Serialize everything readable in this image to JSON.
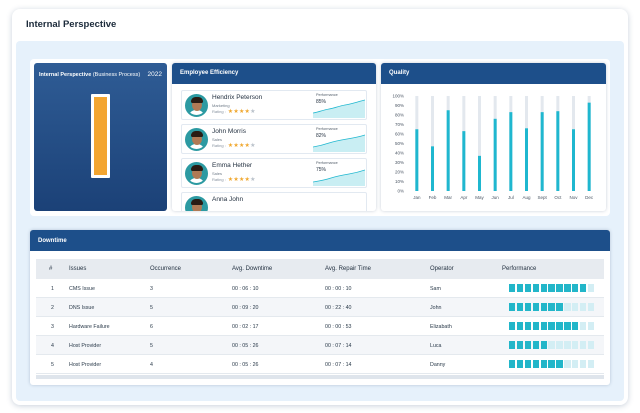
{
  "page": {
    "title": "Internal Perspective"
  },
  "perspective": {
    "title_bold": "Internal Perspective",
    "title_rest": "(Business Process)",
    "year": "2022",
    "bar_fill_fraction": 1.0,
    "bar_color": "#f3a530"
  },
  "employee_efficiency": {
    "title": "Employee Efficiency",
    "rating_label": "Rating :",
    "performance_label": "Performance",
    "employees": [
      {
        "name": "Hendrix Peterson",
        "department": "Marketing",
        "rating": 4,
        "performance": "85%"
      },
      {
        "name": "John Morris",
        "department": "Sales",
        "rating": 4,
        "performance": "82%"
      },
      {
        "name": "Emma Hether",
        "department": "Sales",
        "rating": 4,
        "performance": "75%"
      },
      {
        "name": "Anna John",
        "department": "",
        "rating": 0,
        "performance": ""
      }
    ]
  },
  "quality": {
    "title": "Quality",
    "accent": "#1fb7cf",
    "track": "#e3e8ee"
  },
  "chart_data": {
    "type": "bar",
    "title": "Quality",
    "categories": [
      "Jan",
      "Feb",
      "Mar",
      "Apr",
      "May",
      "Jun",
      "Jul",
      "Aug",
      "Sept",
      "Oct",
      "Nov",
      "Dec"
    ],
    "values": [
      65,
      47,
      85,
      63,
      37,
      76,
      83,
      66,
      83,
      84,
      65,
      93
    ],
    "track_values": [
      100,
      100,
      100,
      100,
      100,
      100,
      100,
      100,
      100,
      100,
      100,
      100
    ],
    "y_ticks": [
      "0%",
      "10%",
      "20%",
      "30%",
      "40%",
      "50%",
      "60%",
      "70%",
      "80%",
      "90%",
      "100%"
    ],
    "ylim": [
      0,
      100
    ],
    "xlabel": "",
    "ylabel": "",
    "grid": false
  },
  "downtime": {
    "title": "Downtime",
    "columns": [
      "#",
      "Issues",
      "Occurrence",
      "Avg. Downtime",
      "Avg. Repair Time",
      "Operator",
      "Performance"
    ],
    "rows": [
      {
        "num": "1",
        "issue": "CMS Issue",
        "occurrence": "3",
        "downtime": "00 : 06 : 10",
        "repair": "00 : 00 : 10",
        "operator": "Sam",
        "performance_blocks": 10
      },
      {
        "num": "2",
        "issue": "DNS Issue",
        "occurrence": "5",
        "downtime": "00 : 09 : 20",
        "repair": "00 : 22 : 40",
        "operator": "John",
        "performance_blocks": 7
      },
      {
        "num": "3",
        "issue": "Hardware Failure",
        "occurrence": "6",
        "downtime": "00 : 02 : 17",
        "repair": "00 : 00 : 53",
        "operator": "Elizabath",
        "performance_blocks": 9
      },
      {
        "num": "4",
        "issue": "Host Provider",
        "occurrence": "5",
        "downtime": "00 : 05 : 26",
        "repair": "00 : 07 : 14",
        "operator": "Luca",
        "performance_blocks": 5
      },
      {
        "num": "5",
        "issue": "Host Provider",
        "occurrence": "4",
        "downtime": "00 : 05 : 26",
        "repair": "00 : 07 : 14",
        "operator": "Danny",
        "performance_blocks": 7
      }
    ],
    "performance_total_blocks": 11,
    "block_color": "#22b6c9",
    "block_off_color": "#d3eef4"
  }
}
